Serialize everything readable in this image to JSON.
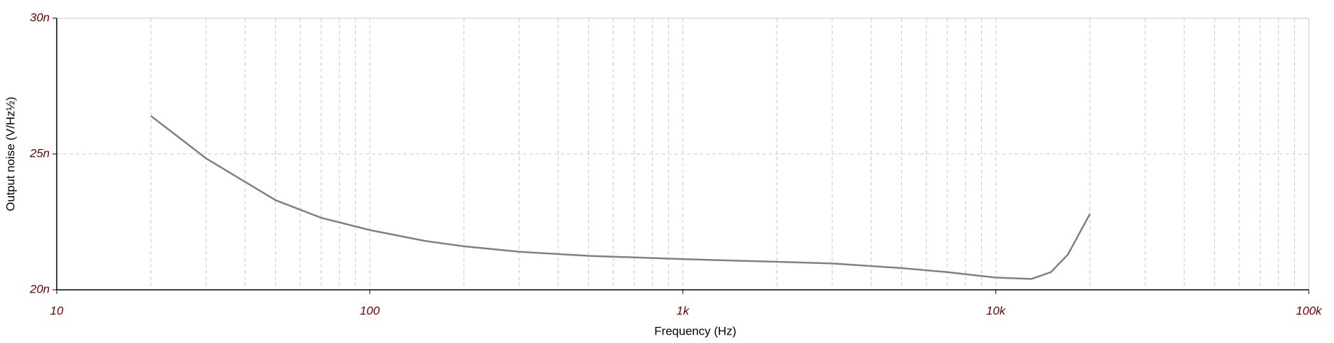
{
  "chart_data": {
    "type": "line",
    "xlabel": "Frequency (Hz)",
    "ylabel": "Output noise (V/Hz½)",
    "xscale": "log",
    "grid": true,
    "xlim": [
      10,
      100000
    ],
    "xticks": [
      10,
      100,
      {
        "value": 1000,
        "label": "1k"
      },
      {
        "value": 10000,
        "label": "10k"
      },
      {
        "value": 100000,
        "label": "100k"
      }
    ],
    "xminorticks": [
      20,
      30,
      40,
      50,
      60,
      70,
      80,
      90,
      200,
      300,
      400,
      500,
      600,
      700,
      800,
      900,
      2000,
      3000,
      4000,
      5000,
      6000,
      7000,
      8000,
      9000,
      20000,
      30000,
      40000,
      50000,
      60000,
      70000,
      80000,
      90000
    ],
    "ylim": [
      2e-08,
      3e-08
    ],
    "yticks": [
      {
        "value": 2e-08,
        "label": "20n"
      },
      {
        "value": 2.5e-08,
        "label": "25n"
      },
      {
        "value": 3e-08,
        "label": "30n"
      }
    ],
    "x": [
      20,
      30,
      50,
      70,
      100,
      150,
      200,
      300,
      500,
      1000,
      2000,
      3000,
      5000,
      7000,
      10000,
      13000,
      15000,
      17000,
      20000
    ],
    "series": [
      {
        "color": "#808080",
        "values": [
          2.64e-08,
          2.484e-08,
          2.33e-08,
          2.265e-08,
          2.22e-08,
          2.18e-08,
          2.16e-08,
          2.14e-08,
          2.125e-08,
          2.113e-08,
          2.103e-08,
          2.097e-08,
          2.08e-08,
          2.065e-08,
          2.045e-08,
          2.04e-08,
          2.065e-08,
          2.13e-08,
          2.28e-08
        ]
      }
    ]
  }
}
